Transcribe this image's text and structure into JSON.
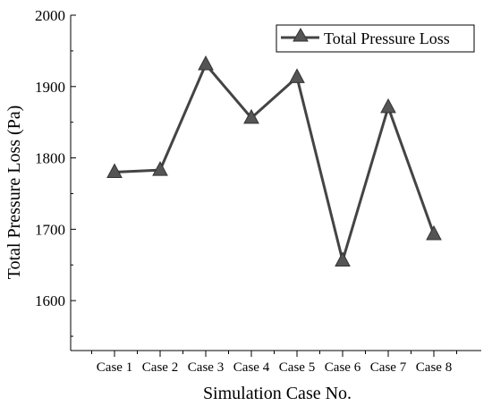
{
  "chart_data": {
    "type": "line",
    "title": "",
    "xlabel": "Simulation Case No.",
    "ylabel": "Total Pressure Loss (Pa)",
    "ylim": [
      1530,
      2000
    ],
    "yticks": [
      1600,
      1700,
      1800,
      1900,
      2000
    ],
    "categories": [
      "Case 1",
      "Case 2",
      "Case 3",
      "Case 4",
      "Case 5",
      "Case 6",
      "Case 7",
      "Case 8"
    ],
    "series": [
      {
        "name": "Total Pressure Loss",
        "values": [
          1780,
          1783,
          1931,
          1856,
          1913,
          1656,
          1871,
          1693
        ],
        "marker": "triangle",
        "color": "#444444"
      }
    ],
    "legend": "top-right",
    "grid": false
  }
}
